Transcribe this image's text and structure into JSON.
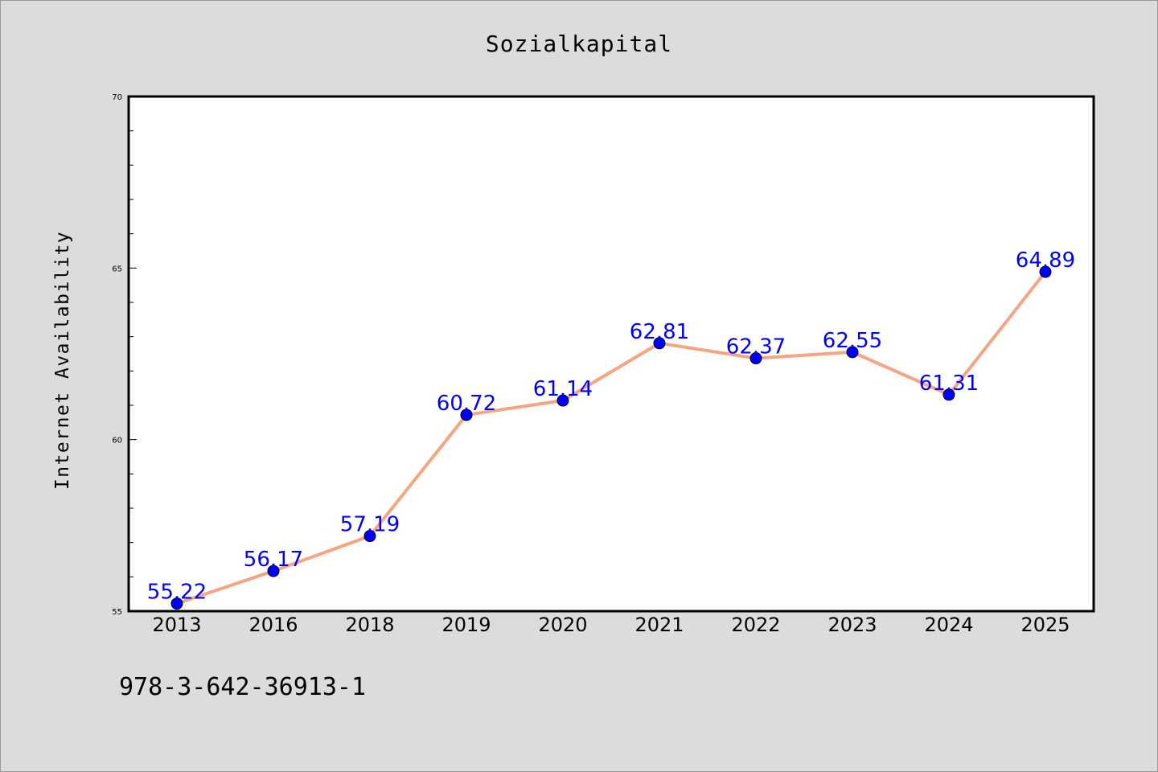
{
  "chart_data": {
    "type": "line",
    "title": "Sozialkapital",
    "xlabel": "",
    "ylabel": "Internet Availability",
    "categories": [
      "2013",
      "2016",
      "2018",
      "2019",
      "2020",
      "2021",
      "2022",
      "2023",
      "2024",
      "2025"
    ],
    "values": [
      55.22,
      56.17,
      57.19,
      60.72,
      61.14,
      62.81,
      62.37,
      62.55,
      61.31,
      64.89
    ],
    "data_labels": [
      "55.22",
      "56.17",
      "57.19",
      "60.72",
      "61.14",
      "62.81",
      "62.37",
      "62.55",
      "61.31",
      "64.89"
    ],
    "ylim": [
      55,
      70
    ],
    "y_major_ticks": [
      55,
      60,
      65,
      70
    ],
    "y_major_tick_labels": [
      "55",
      "60",
      "65",
      "70"
    ],
    "y_minor_step": 1,
    "grid": false,
    "legend": "none",
    "line_color": "#f4a582",
    "marker_color": "#0000ff",
    "label_color": "#0000ff"
  },
  "footer": {
    "text": "978-3-642-36913-1"
  },
  "colors": {
    "background": "#dcdcdc",
    "plot_background": "#ffffff"
  }
}
